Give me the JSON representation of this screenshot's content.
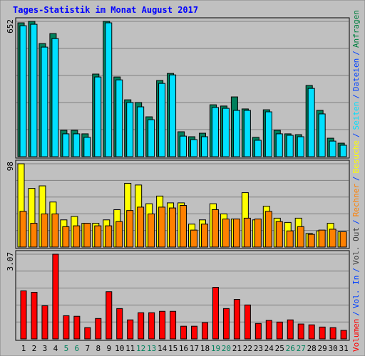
{
  "title": "Tages-Statistik im Monat August 2017",
  "legend_separator": "/",
  "legend": [
    {
      "text": "Volumen",
      "color": "#ff0000"
    },
    {
      "text": "Vol. In",
      "color": "#0040ff"
    },
    {
      "text": "Vol. Out",
      "color": "#404040"
    },
    {
      "text": "Rechner",
      "color": "#ff8000"
    },
    {
      "text": "Besuche",
      "color": "#ffff00"
    },
    {
      "text": "Seiten",
      "color": "#00e0ff"
    },
    {
      "text": "Dateien",
      "color": "#0040ff"
    },
    {
      "text": "Anfragen",
      "color": "#008040"
    }
  ],
  "chart_data": [
    {
      "type": "bar",
      "ylim": [
        0,
        652
      ],
      "yticks": [
        652
      ],
      "series": [
        {
          "color": "#00805c",
          "values": [
            645,
            652,
            545,
            593,
            127,
            127,
            110,
            398,
            652,
            384,
            274,
            261,
            192,
            367,
            401,
            120,
            96,
            113,
            250,
            244,
            288,
            230,
            93,
            226,
            127,
            110,
            106,
            343,
            223,
            89,
            65
          ]
        },
        {
          "color": "#00e0ff",
          "values": [
            631,
            638,
            528,
            569,
            110,
            110,
            93,
            384,
            645,
            370,
            261,
            240,
            178,
            353,
            394,
            99,
            82,
            96,
            237,
            233,
            223,
            223,
            79,
            216,
            110,
            103,
            96,
            329,
            206,
            75,
            55
          ]
        }
      ]
    },
    {
      "type": "bar",
      "ylim": [
        0,
        98
      ],
      "yticks": [
        98
      ],
      "series": [
        {
          "color": "#ffff00",
          "values": [
            98,
            69,
            72,
            53,
            32,
            36,
            28,
            28,
            32,
            44,
            75,
            73,
            51,
            60,
            52,
            52,
            27,
            32,
            51,
            39,
            33,
            64,
            32,
            48,
            34,
            29,
            34,
            16,
            19,
            28,
            18
          ]
        },
        {
          "color": "#ff8000",
          "values": [
            42,
            28,
            39,
            39,
            24,
            25,
            28,
            25,
            25,
            30,
            43,
            47,
            39,
            47,
            46,
            49,
            20,
            27,
            44,
            33,
            33,
            34,
            33,
            42,
            30,
            19,
            24,
            15,
            20,
            21,
            18
          ]
        }
      ]
    },
    {
      "type": "bar",
      "ylim": [
        0,
        3.07
      ],
      "yticks": [
        3.07
      ],
      "categories": [
        "1",
        "2",
        "3",
        "4",
        "5",
        "6",
        "7",
        "8",
        "9",
        "10",
        "11",
        "12",
        "13",
        "14",
        "15",
        "16",
        "17",
        "18",
        "19",
        "20",
        "21",
        "22",
        "23",
        "24",
        "25",
        "26",
        "27",
        "28",
        "29",
        "30",
        "31"
      ],
      "label_colors": [
        "#000000",
        "#000000",
        "#000000",
        "#000000",
        "#00805c",
        "#00805c",
        "#000000",
        "#000000",
        "#000000",
        "#000000",
        "#000000",
        "#00805c",
        "#00805c",
        "#000000",
        "#000000",
        "#000000",
        "#000000",
        "#000000",
        "#00805c",
        "#00805c",
        "#000000",
        "#000000",
        "#000000",
        "#000000",
        "#000000",
        "#00805c",
        "#00805c",
        "#000000",
        "#000000",
        "#000000",
        "#000000"
      ],
      "series": [
        {
          "color": "#ff0000",
          "values": [
            1.74,
            1.69,
            1.2,
            3.07,
            0.84,
            0.82,
            0.41,
            0.74,
            1.71,
            1.1,
            0.69,
            0.95,
            0.95,
            1.0,
            1.0,
            0.46,
            0.46,
            0.59,
            1.87,
            1.1,
            1.43,
            1.23,
            0.56,
            0.67,
            0.61,
            0.69,
            0.54,
            0.51,
            0.43,
            0.41,
            0.31
          ]
        }
      ]
    }
  ]
}
